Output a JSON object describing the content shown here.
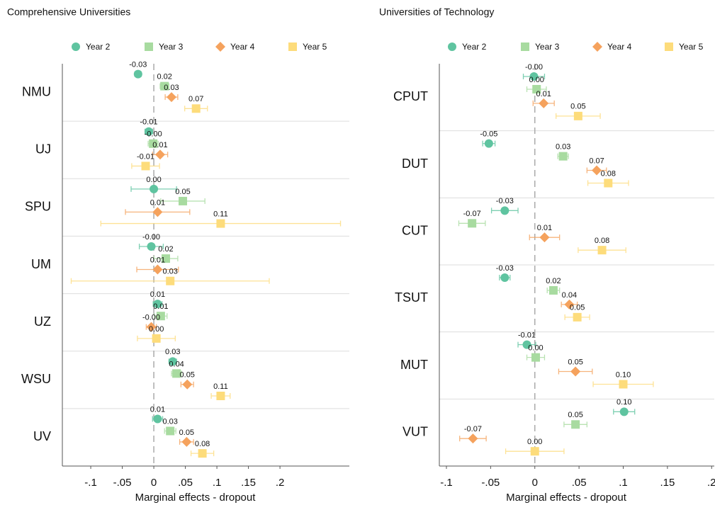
{
  "chart_data": [
    {
      "type": "forest",
      "title": "Comprehensive Universities",
      "categories": [
        "NMU",
        "UJ",
        "SPU",
        "UM",
        "UZ",
        "WSU",
        "UV"
      ],
      "xlabel": "Marginal effects - dropout",
      "xlim": [
        -0.145,
        0.31
      ],
      "xticks": [
        {
          "value": -0.1,
          "label": "-.1"
        },
        {
          "value": -0.05,
          "label": "-.05"
        },
        0,
        {
          "value": 0.05,
          "label": ".05"
        },
        {
          "value": 0.1,
          "label": ".1"
        },
        {
          "value": 0.15,
          "label": ".15"
        },
        {
          "value": 0.2,
          "label": ".2"
        }
      ],
      "reference_line": 0,
      "series": [
        {
          "name": "Year 2",
          "color": "#5fc4a0",
          "marker": "circle",
          "values": [
            -0.025,
            -0.008,
            0.0,
            -0.004,
            0.006,
            0.03,
            0.006
          ],
          "value_labels": [
            "-0.03",
            "-0.01",
            "0.00",
            "-0.00",
            "0.01",
            "0.03",
            "0.01"
          ],
          "errors": [
            0.005,
            0.006,
            0.036,
            0.019,
            0.007,
            0.006,
            0.008
          ]
        },
        {
          "name": "Year 3",
          "color": "#a8dba0",
          "marker": "square",
          "values": [
            0.017,
            -0.001,
            0.046,
            0.019,
            0.011,
            0.036,
            0.026
          ],
          "value_labels": [
            "0.02",
            "-0.00",
            "0.05",
            "0.02",
            "0.01",
            "0.04",
            "0.03"
          ],
          "errors": [
            0.007,
            0.008,
            0.035,
            0.019,
            0.01,
            0.008,
            0.009
          ]
        },
        {
          "name": "Year 4",
          "color": "#f5a25d",
          "marker": "diamond",
          "values": [
            0.028,
            0.01,
            0.006,
            0.006,
            -0.004,
            0.053,
            0.052
          ],
          "value_labels": [
            "0.03",
            "0.01",
            "0.01",
            "0.01",
            "-0.00",
            "0.05",
            "0.05"
          ],
          "errors": [
            0.01,
            0.012,
            0.051,
            0.033,
            0.008,
            0.01,
            0.011
          ]
        },
        {
          "name": "Year 5",
          "color": "#fddc7b",
          "marker": "square",
          "values": [
            0.067,
            -0.013,
            0.106,
            0.026,
            0.004,
            0.106,
            0.077
          ],
          "value_labels": [
            "0.07",
            "-0.01",
            "0.11",
            "0.03",
            "0.00",
            "0.11",
            "0.08"
          ],
          "errors": [
            0.018,
            0.022,
            0.19,
            0.157,
            0.03,
            0.015,
            0.018
          ]
        }
      ]
    },
    {
      "type": "forest",
      "title": "Universities of Technology",
      "categories": [
        "CPUT",
        "DUT",
        "CUT",
        "TSUT",
        "MUT",
        "VUT"
      ],
      "xlabel": "Marginal effects - dropout",
      "xlim": [
        -0.108,
        0.203
      ],
      "xticks": [
        {
          "value": -0.1,
          "label": "-.1"
        },
        {
          "value": -0.05,
          "label": "-.05"
        },
        0,
        {
          "value": 0.05,
          "label": ".05"
        },
        {
          "value": 0.1,
          "label": ".1"
        },
        {
          "value": 0.15,
          "label": ".15"
        },
        {
          "value": 0.2,
          "label": ".2"
        }
      ],
      "reference_line": 0,
      "series": [
        {
          "name": "Year 2",
          "color": "#5fc4a0",
          "marker": "circle",
          "values": [
            -0.001,
            -0.052,
            -0.034,
            -0.034,
            -0.009,
            0.101
          ],
          "value_labels": [
            "-0.00",
            "-0.05",
            "-0.03",
            "-0.03",
            "-0.01",
            "0.10"
          ],
          "errors": [
            0.012,
            0.007,
            0.015,
            0.006,
            0.01,
            0.012
          ]
        },
        {
          "name": "Year 3",
          "color": "#a8dba0",
          "marker": "square",
          "values": [
            0.002,
            0.032,
            -0.071,
            0.021,
            0.001,
            0.046
          ],
          "value_labels": [
            "0.00",
            "0.03",
            "-0.07",
            "0.02",
            "0.00",
            "0.05"
          ],
          "errors": [
            0.011,
            0.006,
            0.015,
            0.007,
            0.01,
            0.013
          ]
        },
        {
          "name": "Year 4",
          "color": "#f5a25d",
          "marker": "diamond",
          "values": [
            0.01,
            0.07,
            0.011,
            0.039,
            0.046,
            -0.07
          ],
          "value_labels": [
            "0.01",
            "0.07",
            "0.01",
            "0.04",
            "0.05",
            "-0.07"
          ],
          "errors": [
            0.012,
            0.011,
            0.017,
            0.009,
            0.019,
            0.015
          ]
        },
        {
          "name": "Year 5",
          "color": "#fddc7b",
          "marker": "square",
          "values": [
            0.049,
            0.083,
            0.076,
            0.048,
            0.1,
            0.0
          ],
          "value_labels": [
            "0.05",
            "0.08",
            "0.08",
            "0.05",
            "0.10",
            "0.00"
          ],
          "errors": [
            0.025,
            0.023,
            0.027,
            0.014,
            0.034,
            0.033
          ]
        }
      ]
    }
  ]
}
